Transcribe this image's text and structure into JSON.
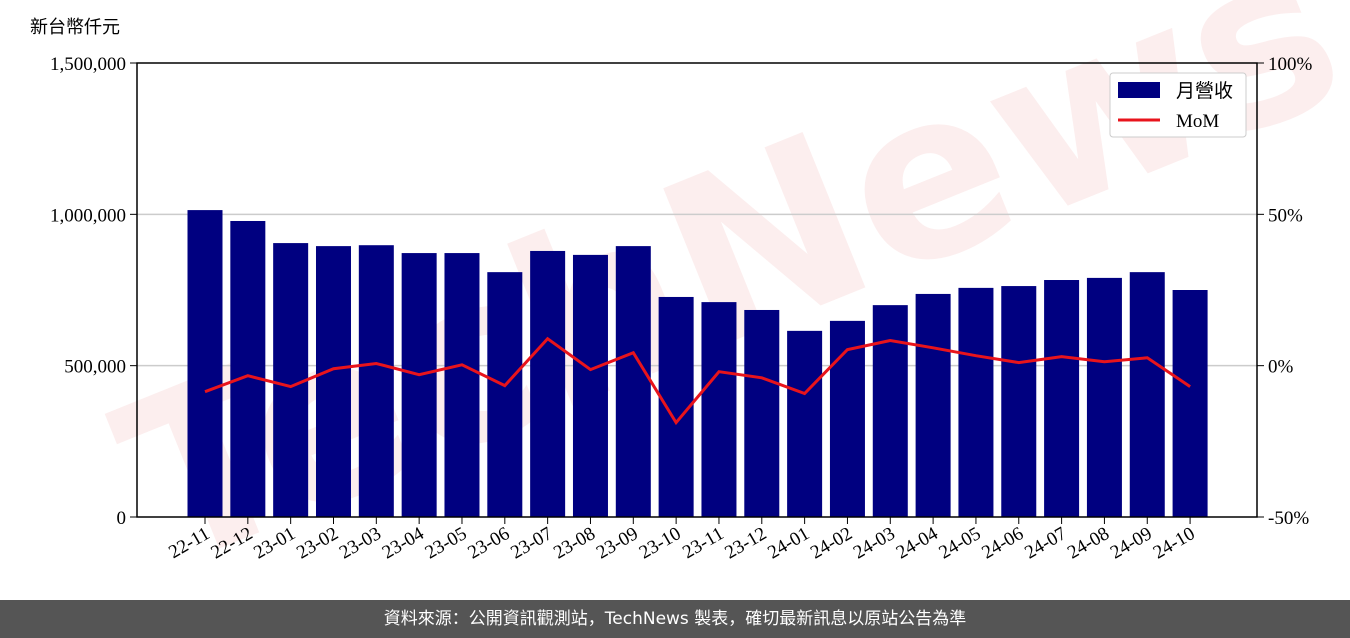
{
  "chart_data": {
    "type": "bar-line",
    "y_label": "新台幣仟元",
    "watermark": "TechNews",
    "categories": [
      "22-11",
      "22-12",
      "23-01",
      "23-02",
      "23-03",
      "23-04",
      "23-05",
      "23-06",
      "23-07",
      "23-08",
      "23-09",
      "23-10",
      "23-11",
      "23-12",
      "24-01",
      "24-02",
      "24-03",
      "24-04",
      "24-05",
      "24-06",
      "24-07",
      "24-08",
      "24-09",
      "24-10"
    ],
    "series": [
      {
        "name": "月營收",
        "color": "#000080",
        "type": "bar",
        "values": [
          1014000,
          978000,
          905000,
          895000,
          898000,
          872000,
          872000,
          809000,
          879000,
          866000,
          895000,
          727000,
          710000,
          684000,
          615000,
          648000,
          700000,
          737000,
          757000,
          763000,
          783000,
          790000,
          809000,
          750000
        ]
      },
      {
        "name": "MoM",
        "color": "#e8141c",
        "type": "line",
        "axis": "y2",
        "values": [
          -8.6,
          -3.3,
          -6.9,
          -1.0,
          0.7,
          -3.0,
          0.3,
          -6.6,
          8.9,
          -1.3,
          4.3,
          -18.8,
          -2.0,
          -4.0,
          -9.2,
          5.3,
          8.3,
          5.9,
          3.3,
          1.0,
          3.0,
          1.3,
          2.6,
          -6.9
        ]
      }
    ],
    "ylim": [
      0,
      1500000
    ],
    "yticks": [
      0,
      {
        "value": 500000,
        "label": "500,000"
      },
      {
        "value": 1000000,
        "label": "1,000,000"
      },
      {
        "value": 1500000,
        "label": "1,500,000"
      }
    ],
    "y2lim": [
      -50,
      100
    ],
    "y2ticks": [
      {
        "value": -50,
        "label": "-50%"
      },
      {
        "value": 0,
        "label": "0%"
      },
      {
        "value": 50,
        "label": "50%"
      },
      {
        "value": 100,
        "label": "100%"
      }
    ],
    "grid": true,
    "legend": "upper right",
    "source": "資料來源：公開資訊觀測站，TechNews 製表，確切最新訊息以原站公告為準"
  }
}
